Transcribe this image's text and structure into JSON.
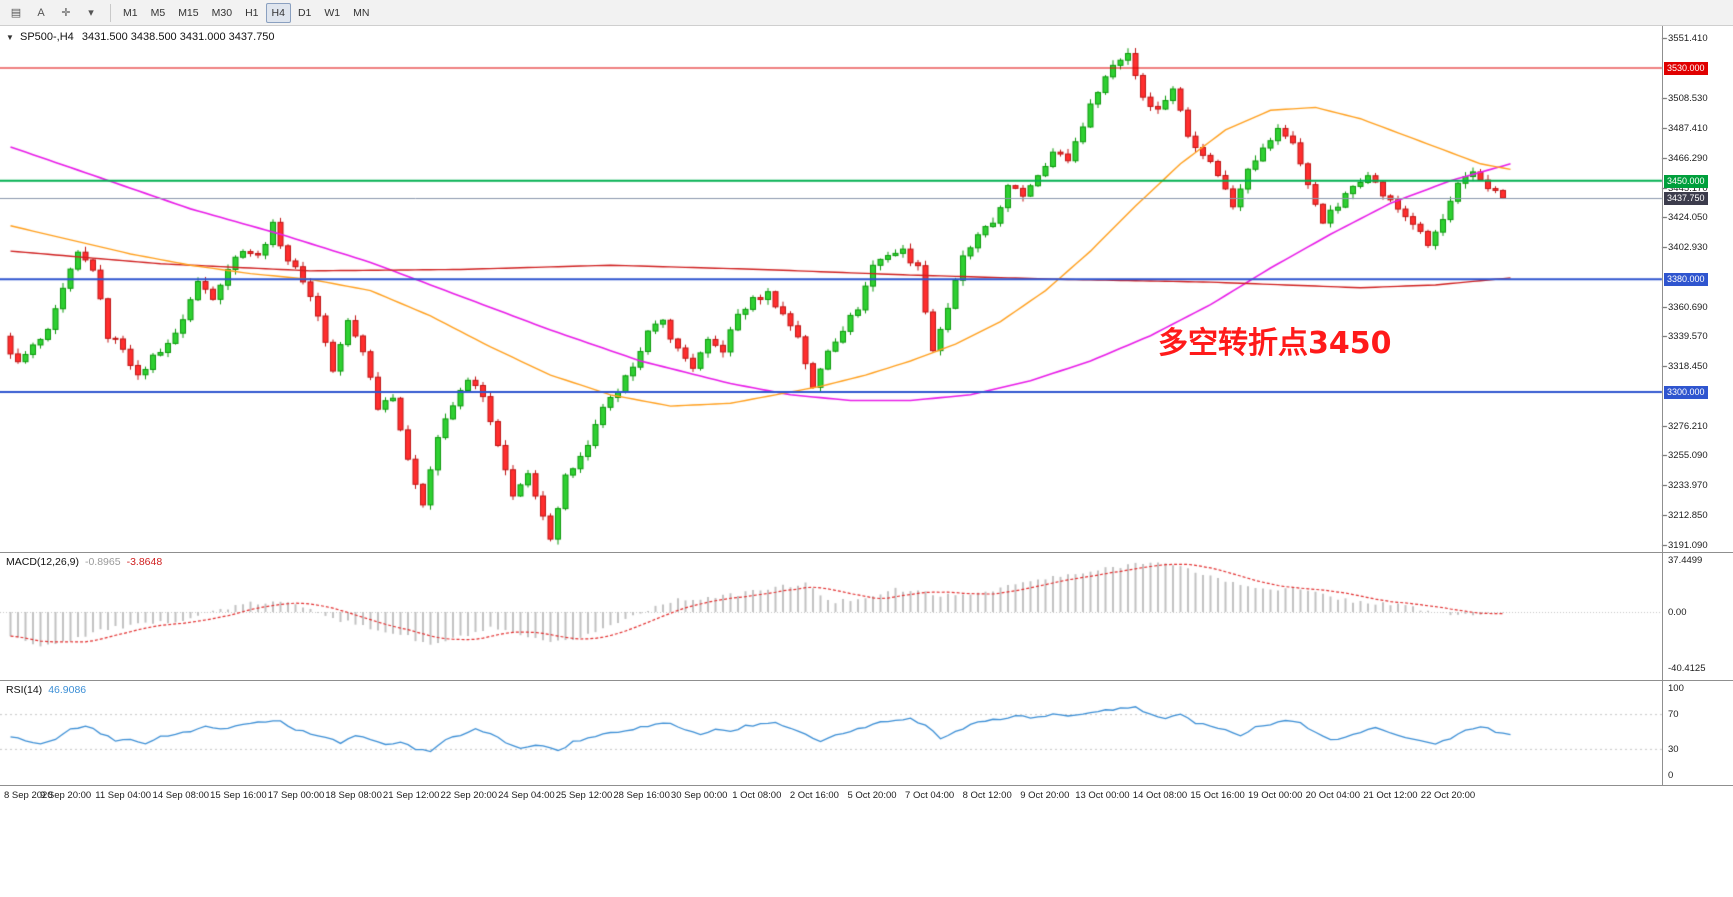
{
  "toolbar": {
    "tools": [
      {
        "id": "charts-list-icon",
        "glyph": "▤"
      },
      {
        "id": "text-label-tool",
        "glyph": "A"
      },
      {
        "id": "crosshair-tool",
        "glyph": "✛"
      },
      {
        "id": "tools-dropdown-arrow",
        "glyph": "▾"
      }
    ],
    "timeframes": [
      "M1",
      "M5",
      "M15",
      "M30",
      "H1",
      "H4",
      "D1",
      "W1",
      "MN"
    ],
    "active_timeframe": "H4"
  },
  "header": {
    "marker": "▼",
    "symbol": "SP500-,H4",
    "ohlc": "3431.500 3438.500 3431.000 3437.750"
  },
  "annotation": {
    "text": "多空转折点3450",
    "color": "#ff1a1a"
  },
  "axis": {
    "price_ticks": [
      3551.41,
      3508.53,
      3487.41,
      3466.29,
      3445.17,
      3424.05,
      3402.93,
      3360.69,
      3339.57,
      3318.45,
      3276.21,
      3255.09,
      3233.97,
      3212.85,
      3191.09
    ],
    "badges": [
      {
        "label": "3530.000",
        "price": 3530,
        "bg": "#e00000"
      },
      {
        "label": "3450.000",
        "price": 3450,
        "bg": "#009f3c"
      },
      {
        "label": "3437.750",
        "price": 3437.75,
        "bg": "#3c3c4c"
      },
      {
        "label": "3380.000",
        "price": 3380,
        "bg": "#2f55cf"
      },
      {
        "label": "3300.000",
        "price": 3300,
        "bg": "#2f55cf"
      }
    ],
    "time_labels": [
      "8 Sep 2020",
      "9 Sep 20:00",
      "11 Sep 04:00",
      "14 Sep 08:00",
      "15 Sep 16:00",
      "17 Sep 00:00",
      "18 Sep 08:00",
      "21 Sep 12:00",
      "22 Sep 20:00",
      "24 Sep 04:00",
      "25 Sep 12:00",
      "28 Sep 16:00",
      "30 Sep 00:00",
      "1 Oct 08:00",
      "2 Oct 16:00",
      "5 Oct 20:00",
      "7 Oct 04:00",
      "8 Oct 12:00",
      "9 Oct 20:00",
      "13 Oct 00:00",
      "14 Oct 08:00",
      "15 Oct 16:00",
      "19 Oct 00:00",
      "20 Oct 04:00",
      "21 Oct 12:00",
      "22 Oct 20:00"
    ]
  },
  "indicators": {
    "macd": {
      "label": "MACD(12,26,9)",
      "value_main": "-0.8965",
      "value_signal": "-3.8648",
      "axis": [
        {
          "label": "37.4499",
          "v": 37.4499
        },
        {
          "label": "0.00",
          "v": 0
        },
        {
          "label": "-40.4125",
          "v": -40.4125
        }
      ]
    },
    "rsi": {
      "label": "RSI(14)",
      "value": "46.9086",
      "axis": [
        {
          "label": "100",
          "v": 100
        },
        {
          "label": "70",
          "v": 70
        },
        {
          "label": "30",
          "v": 30
        },
        {
          "label": "0",
          "v": 0
        }
      ],
      "levels": [
        70,
        30
      ]
    }
  },
  "chart_data": {
    "type": "candlestick",
    "symbol": "SP500-",
    "timeframe": "H4",
    "bars": 200,
    "price_range": [
      3191.09,
      3551.41
    ],
    "current_price": 3437.75,
    "up_color": "#2fd032",
    "down_color": "#ff2e2e",
    "up_border": "#0c9a0c",
    "down_border": "#c01515",
    "levels": [
      {
        "price": 3530,
        "color": "#e00000",
        "width": 1.2
      },
      {
        "price": 3450,
        "color": "#00b050",
        "width": 2
      },
      {
        "price": 3380,
        "color": "#2f55cf",
        "width": 2
      },
      {
        "price": 3300,
        "color": "#2f55cf",
        "width": 2
      }
    ],
    "close_anchors": [
      [
        0,
        3338
      ],
      [
        2,
        3320
      ],
      [
        4,
        3332
      ],
      [
        6,
        3342
      ],
      [
        8,
        3372
      ],
      [
        10,
        3398
      ],
      [
        12,
        3388
      ],
      [
        14,
        3340
      ],
      [
        16,
        3332
      ],
      [
        18,
        3310
      ],
      [
        20,
        3325
      ],
      [
        23,
        3340
      ],
      [
        26,
        3378
      ],
      [
        28,
        3368
      ],
      [
        30,
        3388
      ],
      [
        32,
        3402
      ],
      [
        34,
        3396
      ],
      [
        36,
        3418
      ],
      [
        38,
        3394
      ],
      [
        40,
        3380
      ],
      [
        42,
        3355
      ],
      [
        44,
        3315
      ],
      [
        46,
        3350
      ],
      [
        48,
        3330
      ],
      [
        50,
        3290
      ],
      [
        52,
        3298
      ],
      [
        54,
        3250
      ],
      [
        56,
        3222
      ],
      [
        58,
        3268
      ],
      [
        60,
        3290
      ],
      [
        62,
        3310
      ],
      [
        64,
        3296
      ],
      [
        66,
        3260
      ],
      [
        68,
        3228
      ],
      [
        70,
        3240
      ],
      [
        72,
        3210
      ],
      [
        73,
        3198
      ],
      [
        75,
        3240
      ],
      [
        78,
        3260
      ],
      [
        80,
        3290
      ],
      [
        82,
        3298
      ],
      [
        84,
        3320
      ],
      [
        86,
        3342
      ],
      [
        88,
        3350
      ],
      [
        90,
        3330
      ],
      [
        92,
        3318
      ],
      [
        94,
        3335
      ],
      [
        96,
        3330
      ],
      [
        98,
        3355
      ],
      [
        100,
        3365
      ],
      [
        102,
        3370
      ],
      [
        104,
        3355
      ],
      [
        106,
        3340
      ],
      [
        108,
        3302
      ],
      [
        110,
        3330
      ],
      [
        112,
        3345
      ],
      [
        114,
        3360
      ],
      [
        116,
        3390
      ],
      [
        118,
        3398
      ],
      [
        120,
        3400
      ],
      [
        122,
        3388
      ],
      [
        124,
        3330
      ],
      [
        126,
        3360
      ],
      [
        128,
        3395
      ],
      [
        130,
        3410
      ],
      [
        132,
        3420
      ],
      [
        134,
        3445
      ],
      [
        136,
        3440
      ],
      [
        138,
        3455
      ],
      [
        140,
        3470
      ],
      [
        142,
        3465
      ],
      [
        144,
        3490
      ],
      [
        146,
        3515
      ],
      [
        148,
        3532
      ],
      [
        150,
        3541
      ],
      [
        152,
        3510
      ],
      [
        154,
        3500
      ],
      [
        156,
        3516
      ],
      [
        158,
        3482
      ],
      [
        160,
        3470
      ],
      [
        162,
        3455
      ],
      [
        164,
        3432
      ],
      [
        166,
        3460
      ],
      [
        168,
        3472
      ],
      [
        170,
        3486
      ],
      [
        172,
        3478
      ],
      [
        174,
        3446
      ],
      [
        176,
        3422
      ],
      [
        178,
        3432
      ],
      [
        180,
        3446
      ],
      [
        182,
        3456
      ],
      [
        184,
        3440
      ],
      [
        186,
        3430
      ],
      [
        188,
        3420
      ],
      [
        190,
        3404
      ],
      [
        192,
        3422
      ],
      [
        194,
        3446
      ],
      [
        196,
        3456
      ],
      [
        198,
        3446
      ],
      [
        200,
        3437.75
      ]
    ],
    "moving_averages": [
      {
        "name": "ma-slow-magenta",
        "color": "#e81ce8",
        "width": 1.6,
        "anchors": [
          [
            0,
            3474
          ],
          [
            12,
            3452
          ],
          [
            24,
            3430
          ],
          [
            36,
            3412
          ],
          [
            48,
            3392
          ],
          [
            60,
            3368
          ],
          [
            72,
            3344
          ],
          [
            84,
            3322
          ],
          [
            96,
            3306
          ],
          [
            104,
            3298
          ],
          [
            112,
            3294
          ],
          [
            120,
            3294
          ],
          [
            128,
            3298
          ],
          [
            136,
            3308
          ],
          [
            144,
            3322
          ],
          [
            152,
            3340
          ],
          [
            160,
            3362
          ],
          [
            168,
            3388
          ],
          [
            176,
            3412
          ],
          [
            184,
            3434
          ],
          [
            192,
            3450
          ],
          [
            200,
            3462
          ]
        ]
      },
      {
        "name": "ma-long-red",
        "color": "#d02020",
        "width": 1.4,
        "anchors": [
          [
            0,
            3400
          ],
          [
            20,
            3391
          ],
          [
            40,
            3386
          ],
          [
            60,
            3387
          ],
          [
            80,
            3390
          ],
          [
            100,
            3387
          ],
          [
            120,
            3383
          ],
          [
            140,
            3380
          ],
          [
            160,
            3378
          ],
          [
            180,
            3374
          ],
          [
            190,
            3376
          ],
          [
            200,
            3381
          ]
        ]
      },
      {
        "name": "ma-mid-orange",
        "color": "#ffa01e",
        "width": 1.4,
        "anchors": [
          [
            0,
            3418
          ],
          [
            8,
            3408
          ],
          [
            16,
            3398
          ],
          [
            24,
            3390
          ],
          [
            32,
            3384
          ],
          [
            40,
            3380
          ],
          [
            48,
            3372
          ],
          [
            56,
            3354
          ],
          [
            64,
            3332
          ],
          [
            72,
            3312
          ],
          [
            80,
            3298
          ],
          [
            88,
            3290
          ],
          [
            96,
            3292
          ],
          [
            102,
            3298
          ],
          [
            108,
            3304
          ],
          [
            114,
            3312
          ],
          [
            120,
            3322
          ],
          [
            126,
            3334
          ],
          [
            132,
            3350
          ],
          [
            138,
            3372
          ],
          [
            144,
            3400
          ],
          [
            150,
            3432
          ],
          [
            156,
            3462
          ],
          [
            162,
            3486
          ],
          [
            168,
            3500
          ],
          [
            174,
            3502
          ],
          [
            180,
            3494
          ],
          [
            186,
            3482
          ],
          [
            192,
            3470
          ],
          [
            196,
            3462
          ],
          [
            200,
            3458
          ]
        ]
      }
    ],
    "macd_anchors": [
      [
        0,
        -18
      ],
      [
        4,
        -24
      ],
      [
        8,
        -20
      ],
      [
        12,
        -13
      ],
      [
        16,
        -10
      ],
      [
        20,
        -8
      ],
      [
        24,
        -4
      ],
      [
        28,
        2
      ],
      [
        32,
        6
      ],
      [
        36,
        7
      ],
      [
        40,
        3
      ],
      [
        44,
        -6
      ],
      [
        48,
        -12
      ],
      [
        52,
        -16
      ],
      [
        56,
        -24
      ],
      [
        60,
        -18
      ],
      [
        64,
        -12
      ],
      [
        68,
        -17
      ],
      [
        72,
        -23
      ],
      [
        76,
        -18
      ],
      [
        80,
        -10
      ],
      [
        84,
        0
      ],
      [
        88,
        8
      ],
      [
        92,
        10
      ],
      [
        96,
        12
      ],
      [
        100,
        16
      ],
      [
        104,
        19
      ],
      [
        106,
        21
      ],
      [
        108,
        11
      ],
      [
        110,
        7
      ],
      [
        114,
        11
      ],
      [
        118,
        16
      ],
      [
        122,
        14
      ],
      [
        126,
        11
      ],
      [
        130,
        15
      ],
      [
        134,
        20
      ],
      [
        138,
        24
      ],
      [
        142,
        27
      ],
      [
        146,
        31
      ],
      [
        150,
        35
      ],
      [
        152,
        37
      ],
      [
        156,
        32
      ],
      [
        160,
        26
      ],
      [
        164,
        19
      ],
      [
        168,
        17
      ],
      [
        172,
        16
      ],
      [
        176,
        11
      ],
      [
        180,
        7
      ],
      [
        184,
        6
      ],
      [
        188,
        2
      ],
      [
        192,
        -2
      ],
      [
        196,
        -1.5
      ],
      [
        200,
        -0.9
      ]
    ],
    "rsi_anchors": [
      [
        0,
        45
      ],
      [
        2,
        38
      ],
      [
        4,
        35
      ],
      [
        6,
        42
      ],
      [
        8,
        52
      ],
      [
        10,
        57
      ],
      [
        12,
        48
      ],
      [
        14,
        40
      ],
      [
        16,
        42
      ],
      [
        18,
        36
      ],
      [
        20,
        44
      ],
      [
        24,
        50
      ],
      [
        26,
        55
      ],
      [
        28,
        52
      ],
      [
        30,
        56
      ],
      [
        32,
        60
      ],
      [
        36,
        62
      ],
      [
        38,
        52
      ],
      [
        40,
        48
      ],
      [
        42,
        44
      ],
      [
        44,
        36
      ],
      [
        46,
        46
      ],
      [
        48,
        40
      ],
      [
        50,
        34
      ],
      [
        52,
        38
      ],
      [
        54,
        30
      ],
      [
        56,
        28
      ],
      [
        58,
        40
      ],
      [
        60,
        46
      ],
      [
        62,
        52
      ],
      [
        64,
        47
      ],
      [
        66,
        38
      ],
      [
        68,
        31
      ],
      [
        70,
        35
      ],
      [
        72,
        30
      ],
      [
        73,
        27
      ],
      [
        75,
        38
      ],
      [
        77,
        42
      ],
      [
        80,
        48
      ],
      [
        82,
        50
      ],
      [
        84,
        55
      ],
      [
        86,
        58
      ],
      [
        88,
        60
      ],
      [
        90,
        52
      ],
      [
        92,
        47
      ],
      [
        94,
        52
      ],
      [
        96,
        50
      ],
      [
        98,
        56
      ],
      [
        100,
        58
      ],
      [
        102,
        60
      ],
      [
        104,
        54
      ],
      [
        106,
        48
      ],
      [
        108,
        38
      ],
      [
        110,
        46
      ],
      [
        112,
        50
      ],
      [
        114,
        55
      ],
      [
        116,
        62
      ],
      [
        118,
        63
      ],
      [
        120,
        64
      ],
      [
        122,
        58
      ],
      [
        124,
        42
      ],
      [
        126,
        50
      ],
      [
        128,
        58
      ],
      [
        130,
        62
      ],
      [
        132,
        64
      ],
      [
        134,
        68
      ],
      [
        136,
        66
      ],
      [
        138,
        68
      ],
      [
        140,
        70
      ],
      [
        142,
        68
      ],
      [
        144,
        72
      ],
      [
        146,
        75
      ],
      [
        148,
        76
      ],
      [
        150,
        78
      ],
      [
        152,
        70
      ],
      [
        154,
        66
      ],
      [
        156,
        70
      ],
      [
        158,
        60
      ],
      [
        160,
        57
      ],
      [
        162,
        52
      ],
      [
        164,
        45
      ],
      [
        166,
        55
      ],
      [
        168,
        58
      ],
      [
        170,
        62
      ],
      [
        172,
        60
      ],
      [
        174,
        48
      ],
      [
        176,
        40
      ],
      [
        178,
        44
      ],
      [
        180,
        50
      ],
      [
        182,
        54
      ],
      [
        184,
        48
      ],
      [
        186,
        44
      ],
      [
        188,
        40
      ],
      [
        190,
        35
      ],
      [
        192,
        42
      ],
      [
        194,
        52
      ],
      [
        196,
        56
      ],
      [
        198,
        50
      ],
      [
        200,
        46.9
      ]
    ]
  }
}
